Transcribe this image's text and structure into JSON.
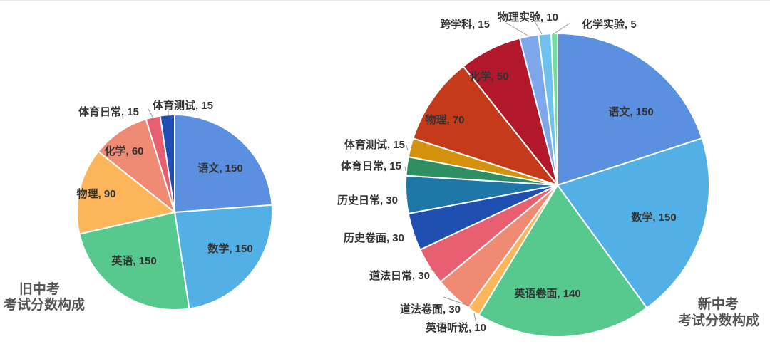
{
  "chart_data": [
    {
      "type": "pie",
      "title": "旧中考\n考试分数构成",
      "label_separator": ", ",
      "slices": [
        {
          "name": "语文",
          "value": 150,
          "color": "#5b8fe0"
        },
        {
          "name": "数学",
          "value": 150,
          "color": "#52b0e6"
        },
        {
          "name": "英语",
          "value": 150,
          "color": "#57c98f"
        },
        {
          "name": "物理",
          "value": 90,
          "color": "#fdb55a"
        },
        {
          "name": "化学",
          "value": 60,
          "color": "#ef8a74"
        },
        {
          "name": "体育日常",
          "value": 15,
          "color": "#e85f72"
        },
        {
          "name": "体育测试",
          "value": 15,
          "color": "#1f4fb0"
        }
      ]
    },
    {
      "type": "pie",
      "title": "新中考\n考试分数构成",
      "label_separator": ", ",
      "slices": [
        {
          "name": "语文",
          "value": 150,
          "color": "#5b8fe0"
        },
        {
          "name": "数学",
          "value": 150,
          "color": "#52b0e6"
        },
        {
          "name": "英语卷面",
          "value": 140,
          "color": "#57c98f"
        },
        {
          "name": "英语听说",
          "value": 10,
          "color": "#fdb55a"
        },
        {
          "name": "道法卷面",
          "value": 30,
          "color": "#ef8a74"
        },
        {
          "name": "道法日常",
          "value": 30,
          "color": "#e85f72"
        },
        {
          "name": "历史卷面",
          "value": 30,
          "color": "#1f4fb0"
        },
        {
          "name": "历史日常",
          "value": 30,
          "color": "#1f77a8"
        },
        {
          "name": "体育日常",
          "value": 15,
          "color": "#2e8f62"
        },
        {
          "name": "体育测试",
          "value": 15,
          "color": "#d4920c"
        },
        {
          "name": "物理",
          "value": 70,
          "color": "#c53a1a"
        },
        {
          "name": "化学",
          "value": 50,
          "color": "#b2172b"
        },
        {
          "name": "跨学科",
          "value": 15,
          "color": "#7fa8ec"
        },
        {
          "name": "物理实验",
          "value": 10,
          "color": "#6fc2ef"
        },
        {
          "name": "化学实验",
          "value": 5,
          "color": "#6fdca0"
        }
      ]
    }
  ]
}
